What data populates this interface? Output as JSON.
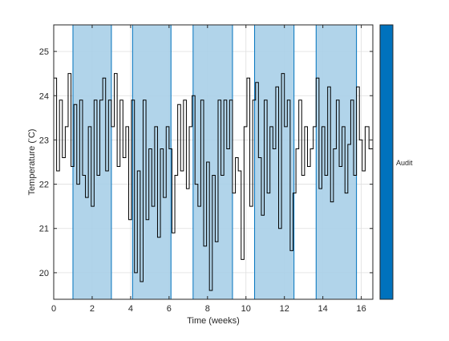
{
  "chart_data": {
    "type": "line",
    "xlabel": "Time (weeks)",
    "ylabel": "Temperature (°C)",
    "ylabel_parts": {
      "prefix": "Temperature (",
      "degree": "°",
      "suffix": "C)"
    },
    "xlim": [
      0,
      16.6
    ],
    "ylim": [
      19.4,
      25.6
    ],
    "xticks": [
      0,
      2,
      4,
      6,
      8,
      10,
      12,
      14,
      16
    ],
    "yticks": [
      20,
      21,
      22,
      23,
      24,
      25
    ],
    "grid": true,
    "colors": {
      "line": "#000000",
      "band_fill": "#a9cfe8",
      "band_edge": "#0072bd",
      "colorbar": "#0072bd",
      "grid": "#dfdfdf",
      "axis": "#262626"
    },
    "shaded_regions": [
      {
        "x0": 1.0,
        "x1": 3.0
      },
      {
        "x0": 4.1,
        "x1": 6.1
      },
      {
        "x0": 7.25,
        "x1": 9.3
      },
      {
        "x0": 10.45,
        "x1": 12.5
      },
      {
        "x0": 13.65,
        "x1": 15.75
      }
    ],
    "series": [
      {
        "style": "step",
        "x": [
          0.0,
          0.15,
          0.3,
          0.45,
          0.6,
          0.75,
          0.9,
          1.05,
          1.2,
          1.35,
          1.5,
          1.65,
          1.8,
          1.95,
          2.1,
          2.25,
          2.4,
          2.55,
          2.7,
          2.85,
          3.0,
          3.15,
          3.3,
          3.45,
          3.6,
          3.75,
          3.9,
          4.05,
          4.2,
          4.35,
          4.5,
          4.65,
          4.8,
          4.95,
          5.1,
          5.25,
          5.4,
          5.55,
          5.7,
          5.85,
          6.0,
          6.15,
          6.3,
          6.45,
          6.6,
          6.75,
          6.9,
          7.05,
          7.2,
          7.35,
          7.5,
          7.65,
          7.8,
          7.95,
          8.1,
          8.25,
          8.4,
          8.55,
          8.7,
          8.85,
          9.0,
          9.15,
          9.3,
          9.45,
          9.6,
          9.75,
          9.9,
          10.05,
          10.2,
          10.35,
          10.5,
          10.65,
          10.8,
          10.95,
          11.1,
          11.25,
          11.4,
          11.55,
          11.7,
          11.85,
          12.0,
          12.15,
          12.3,
          12.45,
          12.6,
          12.75,
          12.9,
          13.05,
          13.2,
          13.35,
          13.5,
          13.65,
          13.8,
          13.95,
          14.1,
          14.25,
          14.4,
          14.55,
          14.7,
          14.85,
          15.0,
          15.15,
          15.3,
          15.45,
          15.6,
          15.75,
          15.9,
          16.05,
          16.2,
          16.4
        ],
        "y": [
          24.4,
          22.3,
          23.9,
          22.6,
          23.3,
          24.5,
          22.4,
          23.8,
          22.0,
          23.9,
          22.2,
          21.7,
          23.3,
          21.5,
          23.9,
          22.2,
          23.9,
          24.4,
          22.3,
          23.9,
          23.3,
          24.5,
          22.4,
          23.9,
          22.6,
          23.3,
          21.2,
          23.9,
          20.0,
          22.3,
          19.8,
          23.9,
          21.2,
          22.8,
          21.5,
          23.3,
          20.8,
          22.8,
          21.7,
          23.3,
          22.8,
          20.9,
          22.2,
          23.8,
          22.3,
          23.9,
          21.9,
          23.3,
          24.0,
          22.0,
          21.5,
          23.9,
          20.6,
          22.5,
          19.6,
          22.2,
          20.7,
          23.9,
          22.2,
          23.9,
          22.8,
          23.9,
          21.8,
          22.6,
          22.3,
          20.3,
          23.3,
          24.4,
          21.5,
          23.9,
          24.3,
          22.6,
          21.3,
          23.9,
          21.8,
          23.3,
          22.8,
          24.2,
          21.0,
          24.5,
          23.3,
          23.9,
          20.5,
          21.8,
          22.8,
          23.9,
          22.2,
          23.3,
          22.4,
          22.8,
          23.3,
          24.4,
          21.9,
          23.3,
          22.2,
          24.2,
          21.6,
          22.8,
          23.9,
          22.4,
          23.3,
          21.8,
          22.9,
          23.9,
          22.2,
          24.2,
          23.0,
          22.3,
          23.3,
          22.8
        ]
      }
    ],
    "colorbar": {
      "tick_label": "Audit"
    }
  }
}
